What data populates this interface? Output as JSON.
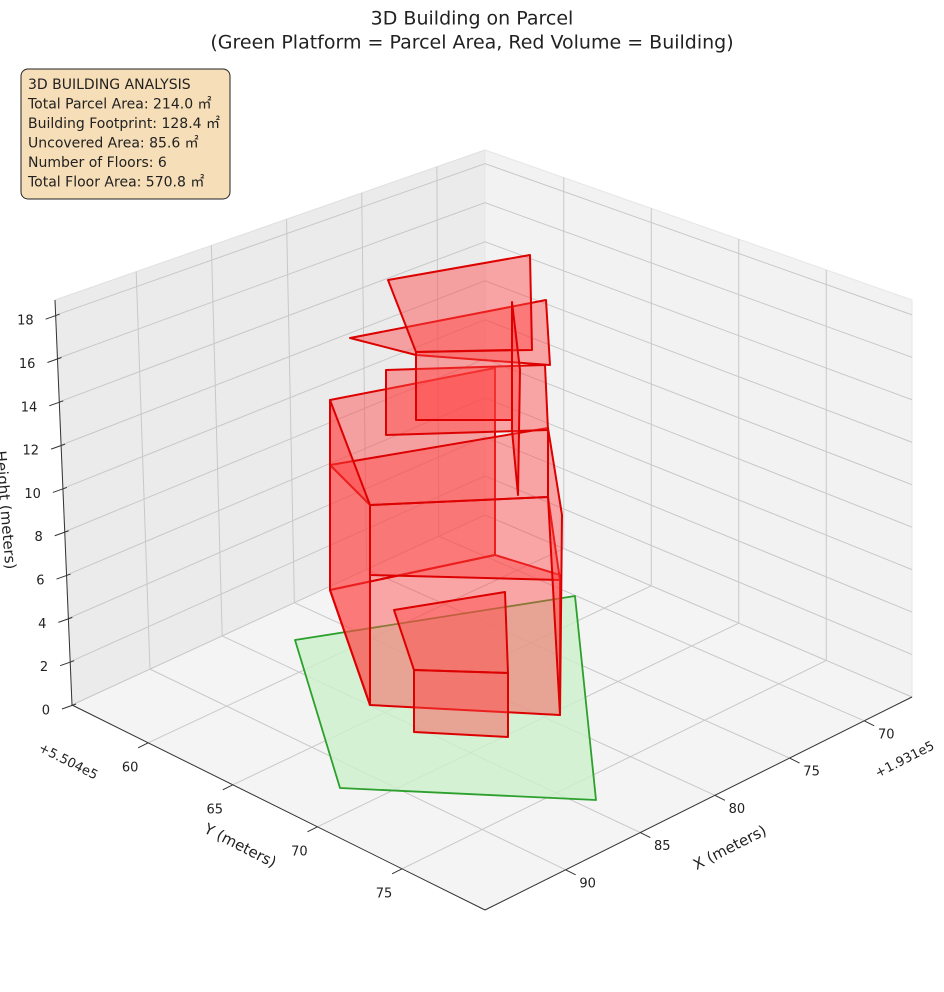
{
  "chart_data": {
    "type": "3d-polygons",
    "title": "3D Building on Parcel",
    "subtitle": "(Green Platform = Parcel Area, Red Volume = Building)",
    "xlabel": "X (meters)",
    "ylabel": "Y (meters)",
    "zlabel": "Height (meters)",
    "x_offset": "+1.931e5",
    "y_offset": "+5.504e5",
    "xlim": [
      95.4,
      66.8
    ],
    "xticks": [
      70,
      75,
      80,
      85,
      90
    ],
    "ylim": [
      55.5,
      79.9
    ],
    "yticks": [
      60,
      65,
      70,
      75
    ],
    "zlim": [
      0,
      18.7
    ],
    "zticks": [
      0,
      2,
      4,
      6,
      8,
      10,
      12,
      14,
      16,
      18
    ],
    "grid": true,
    "info_box": [
      "3D BUILDING ANALYSIS",
      "Total Parcel Area: 214.0 ㎡",
      "Building Footprint: 128.4 ㎡",
      "Uncovered Area: 85.6 ㎡",
      "Number of Floors: 6",
      "Total Floor Area: 570.8 ㎡"
    ]
  }
}
